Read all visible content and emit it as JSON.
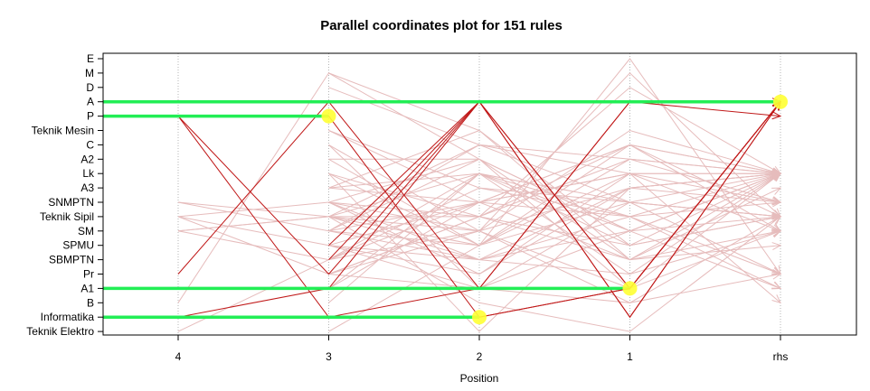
{
  "chart_data": {
    "type": "parallel_coordinates",
    "title": "Parallel coordinates plot for 151 rules",
    "xlabel": "Position",
    "x_categories": [
      "4",
      "3",
      "2",
      "1",
      "rhs"
    ],
    "y_categories": [
      "E",
      "M",
      "D",
      "A",
      "P",
      "Teknik Mesin",
      "C",
      "A2",
      "Lk",
      "A3",
      "SNMPTN",
      "Teknik Sipil",
      "SM",
      "SPMU",
      "SBMPTN",
      "Pr",
      "A1",
      "B",
      "Informatika",
      "Teknik Elektro"
    ],
    "grid": true,
    "highlighted_rules": [
      {
        "path": [
          "A",
          "A",
          "A",
          "A",
          "A"
        ],
        "point_at": "rhs"
      },
      {
        "path": [
          "P",
          "P",
          "Informatika",
          "A1",
          "A"
        ],
        "point_at": "3"
      },
      {
        "path": [
          "A1",
          "A1",
          "A1",
          "A1",
          "A"
        ],
        "point_at": "1"
      },
      {
        "path": [
          "Informatika",
          "Informatika",
          "Informatika",
          "A1",
          "A"
        ],
        "point_at": "2"
      }
    ],
    "dark_rules": [
      [
        "P",
        "Pr",
        "A",
        "Informatika",
        "A"
      ],
      [
        "P",
        "Informatika",
        "A1",
        "A",
        "A"
      ],
      [
        "Pr",
        "A",
        "A1",
        "A",
        "P"
      ],
      [
        "Informatika",
        "A1",
        "A",
        "A1",
        "A"
      ],
      [
        "SBMPTN",
        "A",
        "Informatika",
        "A"
      ],
      [
        "SPMU",
        "A",
        "A1",
        "A"
      ]
    ],
    "light_rules": [
      [
        "SNMPTN",
        "SM",
        "SNMPTN",
        "Lk",
        "Lk"
      ],
      [
        "Teknik Sipil",
        "SNMPTN",
        "Teknik Sipil",
        "A2",
        "Lk"
      ],
      [
        "SM",
        "Teknik Sipil",
        "SPMU",
        "C",
        "Teknik Sipil"
      ],
      [
        "SNMPTN",
        "Teknik Sipil",
        "SBMPTN",
        "SM",
        "Lk"
      ],
      [
        "Teknik Sipil",
        "SPMU",
        "Pr",
        "Lk",
        "SM"
      ],
      [
        "SM",
        "SBMPTN",
        "SNMPTN",
        "C",
        "Lk"
      ],
      [
        "Teknik Sipil",
        "Pr",
        "A1",
        "SNMPTN",
        "Teknik Sipil"
      ],
      [
        "Teknik Elektro",
        "SBMPTN",
        "SM",
        "B",
        "Pr"
      ],
      [
        "SM",
        "Teknik Sipil",
        "Lk",
        "Teknik Sipil",
        "A1"
      ],
      [
        "B",
        "M",
        "A2",
        "SM",
        "Lk"
      ],
      [
        "M",
        "Teknik Mesin",
        "SBMPTN",
        "Lk"
      ],
      [
        "D",
        "C",
        "Lk",
        "SNMPTN"
      ],
      [
        "A3",
        "Lk",
        "SPMU",
        "Teknik Sipil"
      ],
      [
        "SNMPTN",
        "SM",
        "A3",
        "Lk"
      ],
      [
        "Teknik Sipil",
        "B",
        "Teknik Elektro",
        "Teknik Sipil"
      ],
      [
        "A2",
        "A2",
        "A1",
        "Lk"
      ],
      [
        "SPMU",
        "SNMPTN",
        "SBMPTN",
        "A3"
      ],
      [
        "Teknik Mesin",
        "A3",
        "SNMPTN",
        "Lk"
      ],
      [
        "Pr",
        "Teknik Sipil",
        "C",
        "SM"
      ],
      [
        "SM",
        "SPMU",
        "E",
        "Pr"
      ],
      [
        "C",
        "A1",
        "B",
        "Teknik Sipil"
      ],
      [
        "Lk",
        "Teknik Elektro",
        "A3",
        "Lk"
      ],
      [
        "SBMPTN",
        "Lk",
        "SM",
        "A1"
      ],
      [
        "A1",
        "SNMPTN",
        "Teknik Sipil",
        "SNMPTN"
      ],
      [
        "Teknik Sipil",
        "C",
        "A2",
        "Lk"
      ],
      [
        "A3",
        "Teknik Mesin",
        "SPMU",
        "Teknik Sipil"
      ],
      [
        "SNMPTN",
        "SBMPTN",
        "Pr",
        "SM"
      ],
      [
        "Pr",
        "SM",
        "Teknik Mesin",
        "Lk"
      ],
      [
        "SM",
        "A2",
        "SBMPTN",
        "SPMU"
      ],
      [
        "B",
        "Lk",
        "SNMPTN",
        "Teknik Sipil"
      ],
      [
        "A2",
        "SPMU",
        "Lk",
        "B"
      ],
      [
        "Lk",
        "Teknik Sipil",
        "D",
        "Lk"
      ],
      [
        "SPMU",
        "A1",
        "SM",
        "Teknik Sipil"
      ],
      [
        "Teknik Mesin",
        "SNMPTN",
        "C",
        "Lk"
      ],
      [
        "C",
        "SM",
        "A1",
        "SM"
      ],
      [
        "SBMPTN",
        "A3",
        "Teknik Sipil",
        "Pr"
      ],
      [
        "Teknik Sipil",
        "Teknik Sipil",
        "SPMU",
        "Lk"
      ],
      [
        "SM",
        "SBMPTN",
        "A3",
        "SNMPTN"
      ],
      [
        "A1",
        "Lk",
        "Pr",
        "Lk"
      ],
      [
        "Teknik Elektro",
        "SPMU",
        "SNMPTN",
        "Teknik Sipil"
      ],
      [
        "SNMPTN",
        "A2",
        "SM",
        "Lk"
      ],
      [
        "Teknik Sipil",
        "SM",
        "M",
        "Teknik Sipil"
      ],
      [
        "Pr",
        "Teknik Sipil",
        "SBMPTN",
        "SM"
      ],
      [
        "A3",
        "SNMPTN",
        "Lk",
        "Lk"
      ],
      [
        "Lk",
        "SPMU",
        "A2",
        "SNMPTN"
      ],
      [
        "SPMU",
        "SBMPTN",
        "Teknik Sipil",
        "Lk"
      ],
      [
        "SM",
        "C",
        "SNMPTN",
        "Pr"
      ],
      [
        "SNMPTN",
        "Pr",
        "A3",
        "Lk"
      ]
    ],
    "colors": {
      "highlight_line": "#22ee55",
      "highlight_point": "#ffff33",
      "dark_rule": "#c01818",
      "light_rule": "#e6bcbc",
      "grid": "#b4b4b4"
    }
  }
}
